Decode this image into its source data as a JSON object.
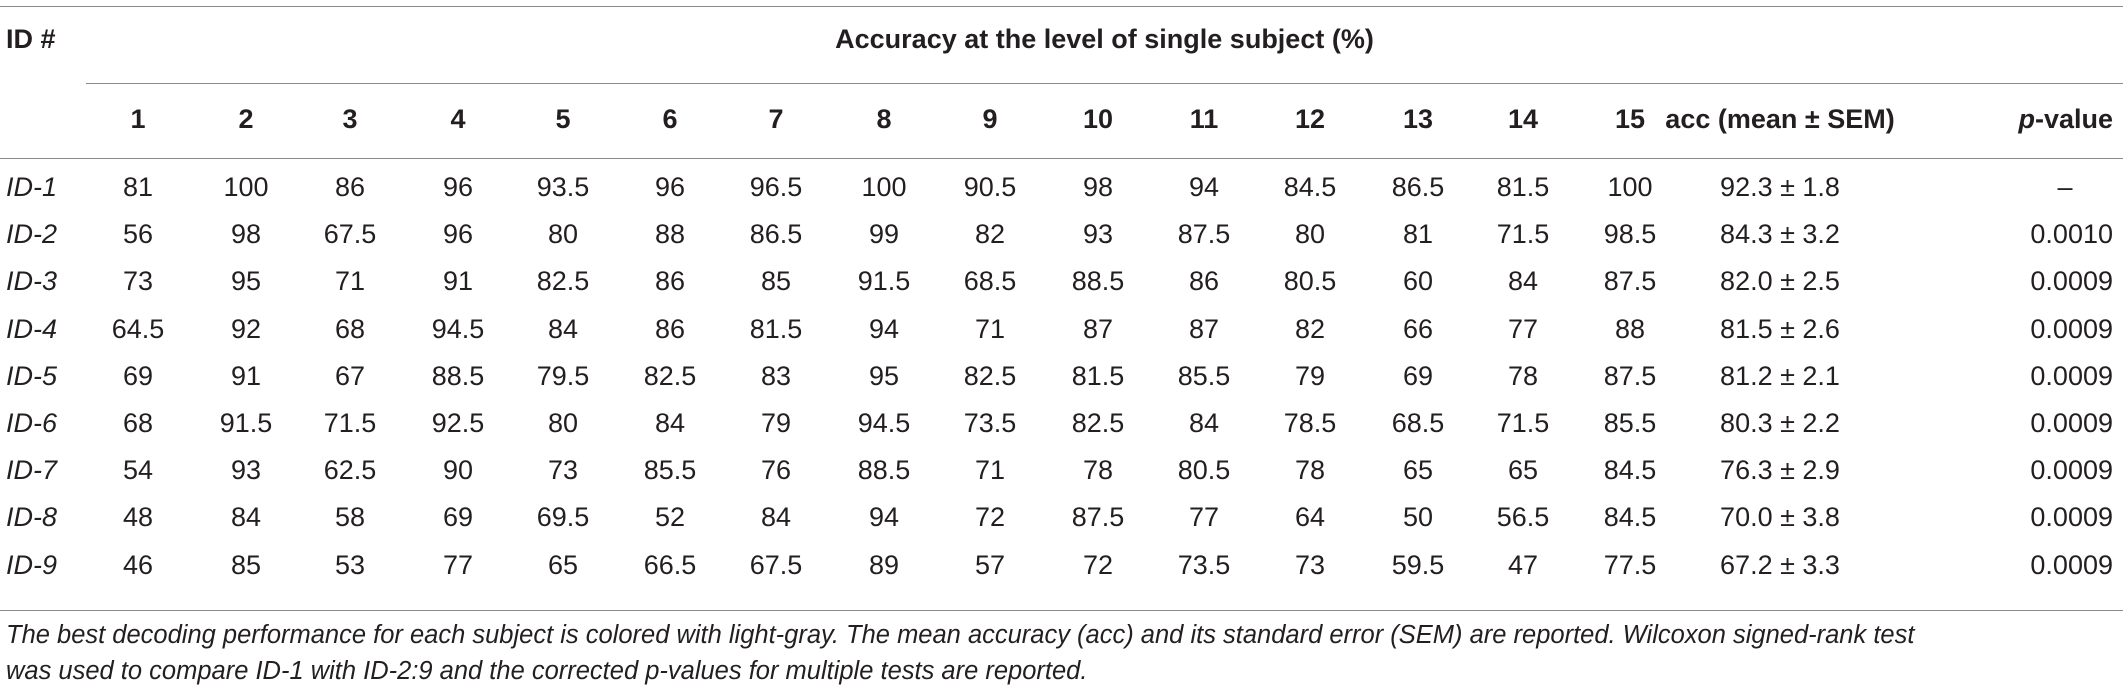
{
  "table": {
    "id_header": "ID #",
    "group_header": "Accuracy at the level of single subject (%)",
    "subject_headers": [
      "1",
      "2",
      "3",
      "4",
      "5",
      "6",
      "7",
      "8",
      "9",
      "10",
      "11",
      "12",
      "13",
      "14",
      "15"
    ],
    "acc_header": "acc (mean ± SEM)",
    "pvalue_header_italic": "p",
    "pvalue_header_rest": "-value",
    "rows": [
      {
        "id": "ID-1",
        "values": [
          "81",
          "100",
          "86",
          "96",
          "93.5",
          "96",
          "96.5",
          "100",
          "90.5",
          "98",
          "94",
          "84.5",
          "86.5",
          "81.5",
          "100"
        ],
        "acc": "92.3 ± 1.8",
        "p": "–"
      },
      {
        "id": "ID-2",
        "values": [
          "56",
          "98",
          "67.5",
          "96",
          "80",
          "88",
          "86.5",
          "99",
          "82",
          "93",
          "87.5",
          "80",
          "81",
          "71.5",
          "98.5"
        ],
        "acc": "84.3 ± 3.2",
        "p": "0.0010"
      },
      {
        "id": "ID-3",
        "values": [
          "73",
          "95",
          "71",
          "91",
          "82.5",
          "86",
          "85",
          "91.5",
          "68.5",
          "88.5",
          "86",
          "80.5",
          "60",
          "84",
          "87.5"
        ],
        "acc": "82.0 ± 2.5",
        "p": "0.0009"
      },
      {
        "id": "ID-4",
        "values": [
          "64.5",
          "92",
          "68",
          "94.5",
          "84",
          "86",
          "81.5",
          "94",
          "71",
          "87",
          "87",
          "82",
          "66",
          "77",
          "88"
        ],
        "acc": "81.5 ± 2.6",
        "p": "0.0009"
      },
      {
        "id": "ID-5",
        "values": [
          "69",
          "91",
          "67",
          "88.5",
          "79.5",
          "82.5",
          "83",
          "95",
          "82.5",
          "81.5",
          "85.5",
          "79",
          "69",
          "78",
          "87.5"
        ],
        "acc": "81.2 ± 2.1",
        "p": "0.0009"
      },
      {
        "id": "ID-6",
        "values": [
          "68",
          "91.5",
          "71.5",
          "92.5",
          "80",
          "84",
          "79",
          "94.5",
          "73.5",
          "82.5",
          "84",
          "78.5",
          "68.5",
          "71.5",
          "85.5"
        ],
        "acc": "80.3 ± 2.2",
        "p": "0.0009"
      },
      {
        "id": "ID-7",
        "values": [
          "54",
          "93",
          "62.5",
          "90",
          "73",
          "85.5",
          "76",
          "88.5",
          "71",
          "78",
          "80.5",
          "78",
          "65",
          "65",
          "84.5"
        ],
        "acc": "76.3 ± 2.9",
        "p": "0.0009"
      },
      {
        "id": "ID-8",
        "values": [
          "48",
          "84",
          "58",
          "69",
          "69.5",
          "52",
          "84",
          "94",
          "72",
          "87.5",
          "77",
          "64",
          "50",
          "56.5",
          "84.5"
        ],
        "acc": "70.0 ± 3.8",
        "p": "0.0009"
      },
      {
        "id": "ID-9",
        "values": [
          "46",
          "85",
          "53",
          "77",
          "65",
          "66.5",
          "67.5",
          "89",
          "57",
          "72",
          "73.5",
          "73",
          "59.5",
          "47",
          "77.5"
        ],
        "acc": "67.2 ± 3.3",
        "p": "0.0009"
      }
    ]
  },
  "footnote": {
    "line1": "The best decoding performance for each subject is colored with light-gray. The mean accuracy (acc) and its standard error (SEM) are reported. Wilcoxon signed-rank test",
    "line2": "was used to compare ID-1 with ID-2:9 and the corrected p-values for multiple tests are reported."
  }
}
